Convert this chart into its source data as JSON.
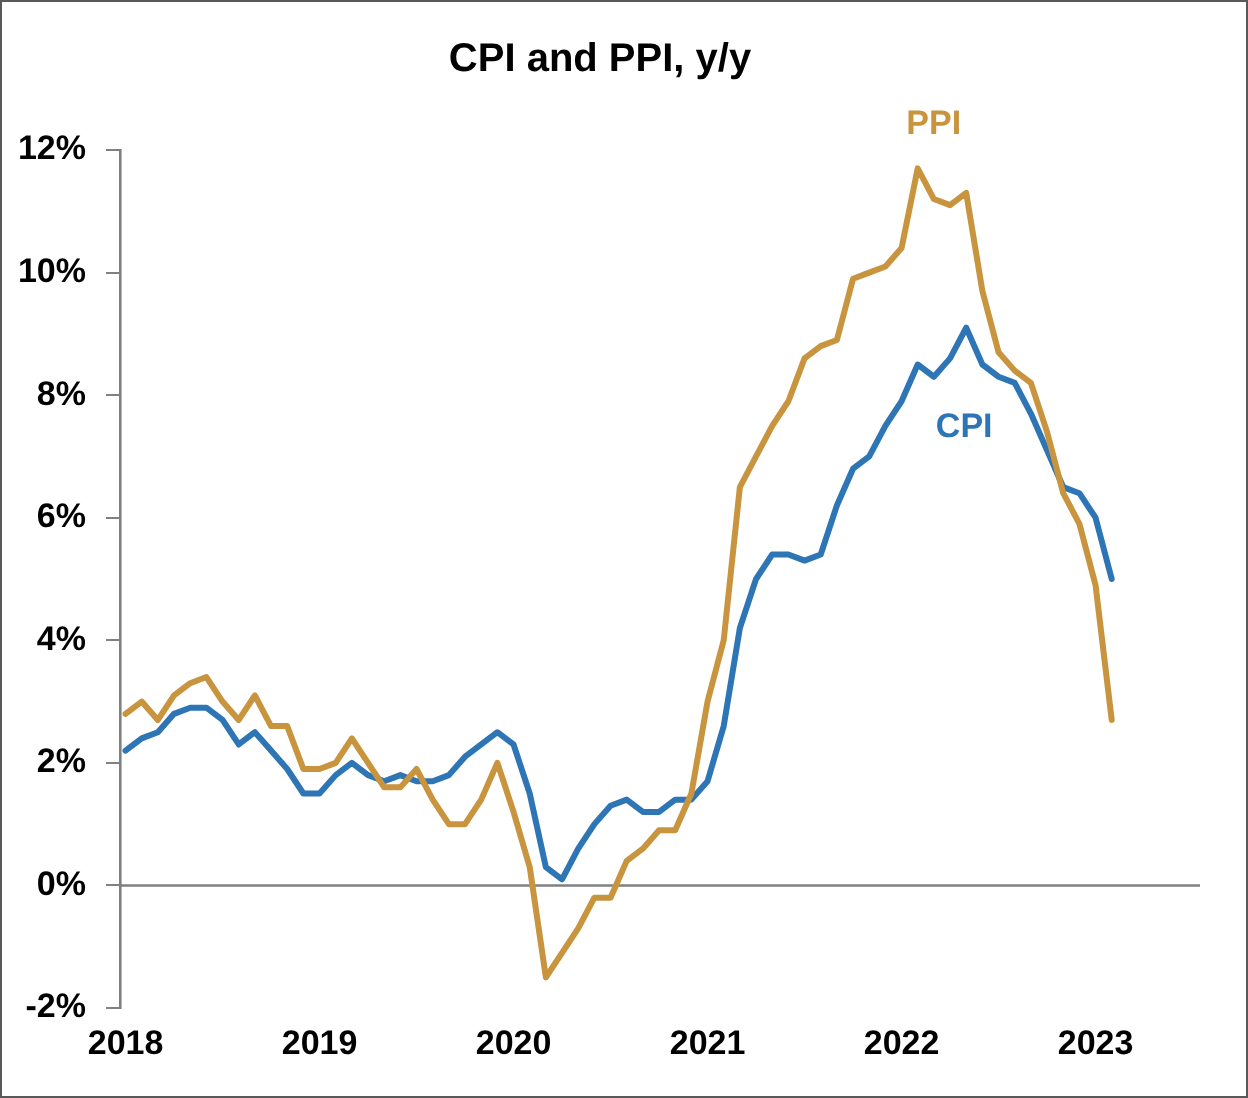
{
  "chart_data": {
    "type": "line",
    "title": "CPI and PPI, y/y",
    "x": [
      "2018-02",
      "2018-03",
      "2018-04",
      "2018-05",
      "2018-06",
      "2018-07",
      "2018-08",
      "2018-09",
      "2018-10",
      "2018-11",
      "2018-12",
      "2019-01",
      "2019-02",
      "2019-03",
      "2019-04",
      "2019-05",
      "2019-06",
      "2019-07",
      "2019-08",
      "2019-09",
      "2019-10",
      "2019-11",
      "2019-12",
      "2020-01",
      "2020-02",
      "2020-03",
      "2020-04",
      "2020-05",
      "2020-06",
      "2020-07",
      "2020-08",
      "2020-09",
      "2020-10",
      "2020-11",
      "2020-12",
      "2021-01",
      "2021-02",
      "2021-03",
      "2021-04",
      "2021-05",
      "2021-06",
      "2021-07",
      "2021-08",
      "2021-09",
      "2021-10",
      "2021-11",
      "2021-12",
      "2022-01",
      "2022-02",
      "2022-03",
      "2022-04",
      "2022-05",
      "2022-06",
      "2022-07",
      "2022-08",
      "2022-09",
      "2022-10",
      "2022-11",
      "2022-12",
      "2023-01",
      "2023-02",
      "2023-03"
    ],
    "series": [
      {
        "name": "CPI",
        "color": "#2e75b6",
        "values": [
          2.2,
          2.4,
          2.5,
          2.8,
          2.9,
          2.9,
          2.7,
          2.3,
          2.5,
          2.2,
          1.9,
          1.5,
          1.5,
          1.8,
          2.0,
          1.8,
          1.7,
          1.8,
          1.7,
          1.7,
          1.8,
          2.1,
          2.3,
          2.5,
          2.3,
          1.5,
          0.3,
          0.1,
          0.6,
          1.0,
          1.3,
          1.4,
          1.2,
          1.2,
          1.4,
          1.4,
          1.7,
          2.6,
          4.2,
          5.0,
          5.4,
          5.4,
          5.3,
          5.4,
          6.2,
          6.8,
          7.0,
          7.5,
          7.9,
          8.5,
          8.3,
          8.6,
          9.1,
          8.5,
          8.3,
          8.2,
          7.7,
          7.1,
          6.5,
          6.4,
          6.0,
          5.0
        ]
      },
      {
        "name": "PPI",
        "color": "#c8943e",
        "values": [
          2.8,
          3.0,
          2.7,
          3.1,
          3.3,
          3.4,
          3.0,
          2.7,
          3.1,
          2.6,
          2.6,
          1.9,
          1.9,
          2.0,
          2.4,
          2.0,
          1.6,
          1.6,
          1.9,
          1.4,
          1.0,
          1.0,
          1.4,
          2.0,
          1.2,
          0.3,
          -1.5,
          -1.1,
          -0.7,
          -0.2,
          -0.2,
          0.4,
          0.6,
          0.9,
          0.9,
          1.5,
          3.0,
          4.0,
          6.5,
          7.0,
          7.5,
          7.9,
          8.6,
          8.8,
          8.9,
          9.9,
          10.0,
          10.1,
          10.4,
          11.7,
          11.2,
          11.1,
          11.3,
          9.7,
          8.7,
          8.4,
          8.2,
          7.4,
          6.4,
          5.9,
          4.9,
          2.7
        ]
      }
    ],
    "xlim": [
      "2018-01-21",
      "2023-08-15"
    ],
    "xticks": [
      {
        "value": "2018-02",
        "label": "2018"
      },
      {
        "value": "2019-02",
        "label": "2019"
      },
      {
        "value": "2020-02",
        "label": "2020"
      },
      {
        "value": "2021-02",
        "label": "2021"
      },
      {
        "value": "2022-02",
        "label": "2022"
      },
      {
        "value": "2023-02",
        "label": "2023"
      }
    ],
    "ylim": [
      -2,
      12
    ],
    "yticks": [
      {
        "value": -2,
        "label": "-2%"
      },
      {
        "value": 0,
        "label": "0%"
      },
      {
        "value": 2,
        "label": "2%"
      },
      {
        "value": 4,
        "label": "4%"
      },
      {
        "value": 6,
        "label": "6%"
      },
      {
        "value": 8,
        "label": "8%"
      },
      {
        "value": 10,
        "label": "10%"
      },
      {
        "value": 12,
        "label": "12%"
      }
    ],
    "ref_lines": [
      {
        "axis": "y",
        "value": 0,
        "color": "#808080"
      }
    ],
    "grid": false,
    "legend": false,
    "marker": "none",
    "line_style": "solid"
  }
}
